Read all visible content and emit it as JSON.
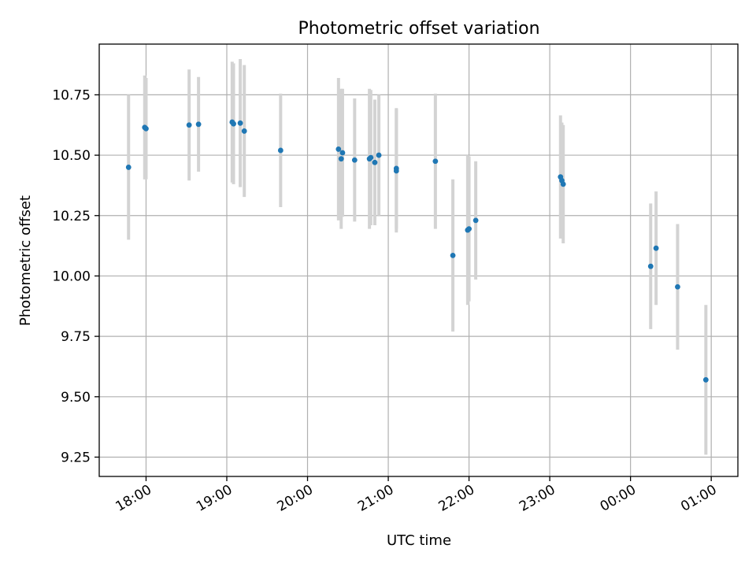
{
  "chart_data": {
    "type": "scatter",
    "title": "Photometric offset variation",
    "xlabel": "UTC time",
    "ylabel": "Photometric offset",
    "x_axis": {
      "unit": "hours since 18:00 UTC (axis wraps past midnight)",
      "range": [
        -0.58,
        7.33
      ],
      "ticks": [
        0,
        1,
        2,
        3,
        4,
        5,
        6,
        7
      ],
      "tick_labels": [
        "18:00",
        "19:00",
        "20:00",
        "21:00",
        "22:00",
        "23:00",
        "00:00",
        "01:00"
      ]
    },
    "y_axis": {
      "range": [
        9.17,
        10.96
      ],
      "ticks": [
        9.25,
        9.5,
        9.75,
        10.0,
        10.25,
        10.5,
        10.75
      ],
      "tick_labels": [
        "9.25",
        "9.50",
        "9.75",
        "10.00",
        "10.25",
        "10.50",
        "10.75"
      ]
    },
    "grid": true,
    "colors": {
      "points": "#1f77b4",
      "errorbars": "#d3d3d3",
      "grid": "#b0b0b0"
    },
    "points": [
      {
        "time": "17:47",
        "y": 10.45,
        "err": 0.3
      },
      {
        "time": "17:59",
        "y": 10.615,
        "err": 0.215
      },
      {
        "time": "18:00",
        "y": 10.61,
        "err": 0.21
      },
      {
        "time": "18:32",
        "y": 10.625,
        "err": 0.23
      },
      {
        "time": "18:39",
        "y": 10.628,
        "err": 0.196
      },
      {
        "time": "19:04",
        "y": 10.637,
        "err": 0.25
      },
      {
        "time": "19:05",
        "y": 10.63,
        "err": 0.25
      },
      {
        "time": "19:10",
        "y": 10.633,
        "err": 0.265
      },
      {
        "time": "19:13",
        "y": 10.6,
        "err": 0.273
      },
      {
        "time": "19:40",
        "y": 10.52,
        "err": 0.235
      },
      {
        "time": "20:23",
        "y": 10.525,
        "err": 0.295
      },
      {
        "time": "20:25",
        "y": 10.485,
        "err": 0.29
      },
      {
        "time": "20:26",
        "y": 10.51,
        "err": 0.265
      },
      {
        "time": "20:35",
        "y": 10.48,
        "err": 0.255
      },
      {
        "time": "20:46",
        "y": 10.485,
        "err": 0.29
      },
      {
        "time": "20:47",
        "y": 10.49,
        "err": 0.28
      },
      {
        "time": "20:50",
        "y": 10.47,
        "err": 0.26
      },
      {
        "time": "20:53",
        "y": 10.5,
        "err": 0.25
      },
      {
        "time": "21:06",
        "y": 10.445,
        "err": 0.25
      },
      {
        "time": "21:06",
        "y": 10.435,
        "err": 0.255
      },
      {
        "time": "21:35",
        "y": 10.475,
        "err": 0.28
      },
      {
        "time": "21:48",
        "y": 10.085,
        "err": 0.315
      },
      {
        "time": "21:59",
        "y": 10.19,
        "err": 0.31
      },
      {
        "time": "22:00",
        "y": 10.195,
        "err": 0.3
      },
      {
        "time": "22:05",
        "y": 10.23,
        "err": 0.245
      },
      {
        "time": "23:08",
        "y": 10.41,
        "err": 0.255
      },
      {
        "time": "23:09",
        "y": 10.395,
        "err": 0.24
      },
      {
        "time": "23:10",
        "y": 10.38,
        "err": 0.245
      },
      {
        "time": "00:15",
        "y": 10.04,
        "err": 0.26
      },
      {
        "time": "00:19",
        "y": 10.115,
        "err": 0.235
      },
      {
        "time": "00:35",
        "y": 9.955,
        "err": 0.26
      },
      {
        "time": "00:56",
        "y": 9.57,
        "err": 0.31
      }
    ]
  }
}
